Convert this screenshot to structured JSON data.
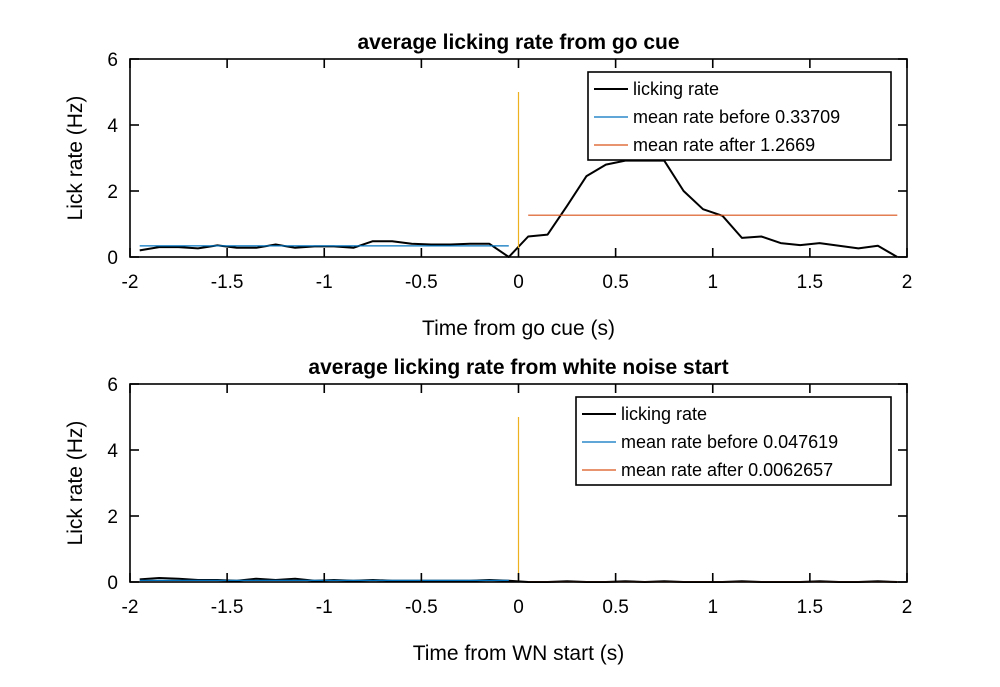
{
  "chart_data": [
    {
      "type": "line",
      "title": "average licking rate from go cue",
      "xlabel": "Time from go cue (s)",
      "ylabel": "Lick rate (Hz)",
      "xlim": [
        -2,
        2
      ],
      "ylim": [
        0,
        6
      ],
      "xticks": [
        -2,
        -1.5,
        -1,
        -0.5,
        0,
        0.5,
        1,
        1.5,
        2
      ],
      "xtick_labels": [
        "-2",
        "-1.5",
        "-1",
        "-0.5",
        "0",
        "0.5",
        "1",
        "1.5",
        "2"
      ],
      "yticks": [
        0,
        2,
        4,
        6
      ],
      "ytick_labels": [
        "0",
        "2",
        "4",
        "6"
      ],
      "grid": false,
      "legend_position": "top-right",
      "series": [
        {
          "name": "licking rate",
          "color": "#000000",
          "x": [
            -1.95,
            -1.85,
            -1.75,
            -1.65,
            -1.55,
            -1.45,
            -1.35,
            -1.25,
            -1.15,
            -1.05,
            -0.95,
            -0.85,
            -0.75,
            -0.65,
            -0.55,
            -0.45,
            -0.35,
            -0.25,
            -0.15,
            -0.05,
            0.05,
            0.15,
            0.25,
            0.35,
            0.45,
            0.55,
            0.65,
            0.75,
            0.85,
            0.95,
            1.05,
            1.15,
            1.25,
            1.35,
            1.45,
            1.55,
            1.65,
            1.75,
            1.85,
            1.95
          ],
          "y": [
            0.2,
            0.3,
            0.3,
            0.26,
            0.35,
            0.28,
            0.28,
            0.38,
            0.28,
            0.32,
            0.32,
            0.28,
            0.48,
            0.48,
            0.4,
            0.38,
            0.38,
            0.4,
            0.4,
            0.0,
            0.62,
            0.68,
            1.55,
            2.45,
            2.8,
            2.92,
            2.92,
            2.92,
            2.0,
            1.45,
            1.25,
            0.58,
            0.62,
            0.42,
            0.36,
            0.42,
            0.34,
            0.26,
            0.34,
            0.0
          ]
        },
        {
          "name": "mean rate before 0.33709",
          "color": "#0072BD",
          "x": [
            -1.95,
            -0.05
          ],
          "y": [
            0.33709,
            0.33709
          ]
        },
        {
          "name": "mean rate after 1.2669",
          "color": "#D95319",
          "x": [
            0.05,
            1.95
          ],
          "y": [
            1.2669,
            1.2669
          ]
        },
        {
          "name": "",
          "color": "#EDB120",
          "x": [
            0,
            0
          ],
          "y": [
            0,
            5
          ],
          "in_legend": false
        }
      ]
    },
    {
      "type": "line",
      "title": "average licking rate from white noise start",
      "xlabel": "Time from WN start (s)",
      "ylabel": "Lick rate (Hz)",
      "xlim": [
        -2,
        2
      ],
      "ylim": [
        0,
        6
      ],
      "xticks": [
        -2,
        -1.5,
        -1,
        -0.5,
        0,
        0.5,
        1,
        1.5,
        2
      ],
      "xtick_labels": [
        "-2",
        "-1.5",
        "-1",
        "-0.5",
        "0",
        "0.5",
        "1",
        "1.5",
        "2"
      ],
      "yticks": [
        0,
        2,
        4,
        6
      ],
      "ytick_labels": [
        "0",
        "2",
        "4",
        "6"
      ],
      "grid": false,
      "legend_position": "top-right",
      "series": [
        {
          "name": "licking rate",
          "color": "#000000",
          "x": [
            -1.95,
            -1.85,
            -1.75,
            -1.65,
            -1.55,
            -1.45,
            -1.35,
            -1.25,
            -1.15,
            -1.05,
            -0.95,
            -0.85,
            -0.75,
            -0.65,
            -0.55,
            -0.45,
            -0.35,
            -0.25,
            -0.15,
            -0.05,
            0.05,
            0.15,
            0.25,
            0.35,
            0.45,
            0.55,
            0.65,
            0.75,
            0.85,
            0.95,
            1.05,
            1.15,
            1.25,
            1.35,
            1.45,
            1.55,
            1.65,
            1.75,
            1.85,
            1.95
          ],
          "y": [
            0.08,
            0.12,
            0.1,
            0.06,
            0.06,
            0.04,
            0.1,
            0.06,
            0.1,
            0.04,
            0.06,
            0.04,
            0.06,
            0.04,
            0.04,
            0.04,
            0.04,
            0.04,
            0.06,
            0.04,
            0.0,
            0.0,
            0.02,
            0.0,
            0.0,
            0.02,
            0.0,
            0.02,
            0.0,
            0.0,
            0.0,
            0.02,
            0.0,
            0.0,
            0.0,
            0.02,
            0.0,
            0.0,
            0.02,
            0.0
          ]
        },
        {
          "name": "mean rate before 0.047619",
          "color": "#0072BD",
          "x": [
            -1.95,
            -0.05
          ],
          "y": [
            0.047619,
            0.047619
          ]
        },
        {
          "name": "mean rate after 0.0062657",
          "color": "#D95319",
          "x": [
            0.05,
            1.95
          ],
          "y": [
            0.0062657,
            0.0062657
          ]
        },
        {
          "name": "",
          "color": "#EDB120",
          "x": [
            0,
            0
          ],
          "y": [
            0,
            5
          ],
          "in_legend": false
        }
      ]
    }
  ]
}
